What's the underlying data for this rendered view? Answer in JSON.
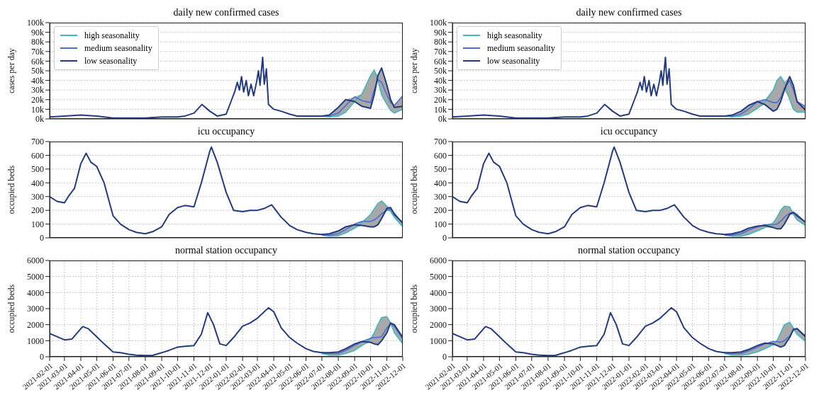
{
  "chart_data": [
    {
      "type": "line",
      "title": "daily new confirmed cases",
      "ylabel": "cases per day",
      "xlim": [
        "2021-02-01",
        "2022-12-01"
      ],
      "xticks": [
        "2021-02-01",
        "2021-03-01",
        "2021-04-01",
        "2021-05-01",
        "2021-06-01",
        "2021-07-01",
        "2021-08-01",
        "2021-09-01",
        "2021-10-01",
        "2021-11-01",
        "2021-12-01",
        "2022-01-01",
        "2022-02-01",
        "2022-03-01",
        "2022-04-01",
        "2022-05-01",
        "2022-06-01",
        "2022-07-01",
        "2022-08-01",
        "2022-09-01",
        "2022-10-01",
        "2022-11-01",
        "2022-12-01"
      ],
      "ylim": [
        0,
        100000
      ],
      "yticks": [
        {
          "value": 0,
          "label": "0k"
        },
        {
          "value": 10000,
          "label": "10k"
        },
        {
          "value": 20000,
          "label": "20k"
        },
        {
          "value": 30000,
          "label": "30k"
        },
        {
          "value": 40000,
          "label": "40k"
        },
        {
          "value": 50000,
          "label": "50k"
        },
        {
          "value": 60000,
          "label": "60k"
        },
        {
          "value": 70000,
          "label": "70k"
        },
        {
          "value": 80000,
          "label": "80k"
        },
        {
          "value": 90000,
          "label": "90k"
        },
        {
          "value": 100000,
          "label": "100k"
        }
      ],
      "grid": true,
      "legend": "top left",
      "tick_labels": "y",
      "series": [
        {
          "name": "high seasonality",
          "color": "#3fb8c4",
          "x": [
            "2022-07-01",
            "2022-07-15",
            "2022-08-01",
            "2022-08-15",
            "2022-09-01",
            "2022-09-15",
            "2022-10-01",
            "2022-10-08",
            "2022-10-15",
            "2022-10-22",
            "2022-11-01",
            "2022-11-08",
            "2022-11-15",
            "2022-12-01"
          ],
          "values": [
            3000,
            2000,
            3000,
            7000,
            18000,
            26000,
            45000,
            51000,
            40000,
            25000,
            15000,
            9000,
            6000,
            10000
          ]
        },
        {
          "name": "medium seasonality",
          "color": "#4a6fd0",
          "x": [
            "2022-07-01",
            "2022-07-15",
            "2022-08-01",
            "2022-08-15",
            "2022-09-01",
            "2022-09-15",
            "2022-10-01",
            "2022-10-08",
            "2022-10-15",
            "2022-10-22",
            "2022-11-01",
            "2022-11-08",
            "2022-11-15",
            "2022-12-01"
          ],
          "values": [
            3000,
            3000,
            6000,
            14000,
            23000,
            19000,
            17000,
            30000,
            41000,
            38000,
            25000,
            17000,
            14000,
            24000
          ],
          "lower": [
            3000,
            2000,
            3000,
            7000,
            18000,
            13000,
            11000,
            25000,
            40000,
            25000,
            15000,
            9000,
            6000,
            10000
          ],
          "upper": [
            3000,
            4000,
            12000,
            20000,
            23000,
            26000,
            45000,
            51000,
            45000,
            53000,
            35000,
            20000,
            14000,
            24000
          ]
        },
        {
          "name": "low seasonality",
          "color": "#233a80",
          "x": [
            "2021-02-01",
            "2021-03-01",
            "2021-04-01",
            "2021-05-01",
            "2021-06-01",
            "2021-07-01",
            "2021-08-01",
            "2021-09-01",
            "2021-10-01",
            "2021-10-15",
            "2021-11-01",
            "2021-11-16",
            "2021-12-01",
            "2021-12-15",
            "2022-01-01",
            "2022-01-10",
            "2022-01-17",
            "2022-01-22",
            "2022-01-26",
            "2022-01-30",
            "2022-02-03",
            "2022-02-08",
            "2022-02-12",
            "2022-02-17",
            "2022-02-22",
            "2022-02-28",
            "2022-03-03",
            "2022-03-06",
            "2022-03-11",
            "2022-03-14",
            "2022-03-18",
            "2022-03-22",
            "2022-04-01",
            "2022-04-15",
            "2022-05-01",
            "2022-05-15",
            "2022-06-01",
            "2022-06-15",
            "2022-07-01",
            "2022-07-15",
            "2022-08-01",
            "2022-08-15",
            "2022-09-01",
            "2022-09-15",
            "2022-10-01",
            "2022-10-08",
            "2022-10-15",
            "2022-10-22",
            "2022-11-01",
            "2022-11-08",
            "2022-11-15",
            "2022-12-01"
          ],
          "values": [
            2000,
            3000,
            4000,
            3000,
            1000,
            1000,
            1000,
            2000,
            2000,
            3000,
            6000,
            15000,
            8000,
            3000,
            5000,
            18000,
            28000,
            38000,
            30000,
            44000,
            28000,
            40000,
            24000,
            36000,
            24000,
            40000,
            50000,
            35000,
            64000,
            36000,
            52000,
            15000,
            10000,
            8000,
            5000,
            3000,
            3000,
            3000,
            3000,
            4000,
            12000,
            20000,
            18000,
            13000,
            11000,
            25000,
            45000,
            53000,
            35000,
            20000,
            12000,
            13000
          ]
        }
      ]
    },
    {
      "type": "line",
      "title": "daily new confirmed cases",
      "ylabel": "cases per day",
      "xlim": [
        "2021-02-01",
        "2022-12-01"
      ],
      "xticks": [
        "2021-02-01",
        "2021-03-01",
        "2021-04-01",
        "2021-05-01",
        "2021-06-01",
        "2021-07-01",
        "2021-08-01",
        "2021-09-01",
        "2021-10-01",
        "2021-11-01",
        "2021-12-01",
        "2022-01-01",
        "2022-02-01",
        "2022-03-01",
        "2022-04-01",
        "2022-05-01",
        "2022-06-01",
        "2022-07-01",
        "2022-08-01",
        "2022-09-01",
        "2022-10-01",
        "2022-11-01",
        "2022-12-01"
      ],
      "ylim": [
        0,
        100000
      ],
      "yticks": [
        {
          "value": 0,
          "label": "0k"
        },
        {
          "value": 10000,
          "label": "10k"
        },
        {
          "value": 20000,
          "label": "20k"
        },
        {
          "value": 30000,
          "label": "30k"
        },
        {
          "value": 40000,
          "label": "40k"
        },
        {
          "value": 50000,
          "label": "50k"
        },
        {
          "value": 60000,
          "label": "60k"
        },
        {
          "value": 70000,
          "label": "70k"
        },
        {
          "value": 80000,
          "label": "80k"
        },
        {
          "value": 90000,
          "label": "90k"
        },
        {
          "value": 100000,
          "label": "100k"
        }
      ],
      "grid": true,
      "legend": "top left",
      "tick_labels": "y",
      "series": [
        {
          "name": "high seasonality",
          "color": "#3fb8c4",
          "x": [
            "2022-07-01",
            "2022-07-15",
            "2022-08-01",
            "2022-08-15",
            "2022-09-01",
            "2022-09-15",
            "2022-10-01",
            "2022-10-08",
            "2022-10-15",
            "2022-10-22",
            "2022-11-01",
            "2022-11-08",
            "2022-11-15",
            "2022-12-01"
          ],
          "values": [
            3000,
            2000,
            3000,
            5000,
            11000,
            18000,
            30000,
            40000,
            44000,
            38000,
            20000,
            10000,
            7000,
            7000
          ]
        },
        {
          "name": "medium seasonality",
          "color": "#4a6fd0",
          "x": [
            "2022-07-01",
            "2022-07-15",
            "2022-08-01",
            "2022-08-15",
            "2022-09-01",
            "2022-09-15",
            "2022-10-01",
            "2022-10-08",
            "2022-10-15",
            "2022-10-22",
            "2022-11-01",
            "2022-11-08",
            "2022-11-15",
            "2022-12-01"
          ],
          "values": [
            3000,
            3000,
            5000,
            10000,
            18000,
            20000,
            17000,
            17000,
            22000,
            32000,
            40000,
            30000,
            18000,
            13000
          ],
          "lower": [
            3000,
            2000,
            3000,
            5000,
            11000,
            15000,
            8000,
            10000,
            18000,
            30000,
            20000,
            10000,
            7000,
            7000
          ],
          "upper": [
            3000,
            4000,
            8000,
            14000,
            18000,
            20000,
            30000,
            40000,
            44000,
            38000,
            44000,
            35000,
            18000,
            13000
          ]
        },
        {
          "name": "low seasonality",
          "color": "#233a80",
          "x": [
            "2021-02-01",
            "2021-03-01",
            "2021-04-01",
            "2021-05-01",
            "2021-06-01",
            "2021-07-01",
            "2021-08-01",
            "2021-09-01",
            "2021-10-01",
            "2021-10-15",
            "2021-11-01",
            "2021-11-16",
            "2021-12-01",
            "2021-12-15",
            "2022-01-01",
            "2022-01-10",
            "2022-01-17",
            "2022-01-22",
            "2022-01-26",
            "2022-01-30",
            "2022-02-03",
            "2022-02-08",
            "2022-02-12",
            "2022-02-17",
            "2022-02-22",
            "2022-02-28",
            "2022-03-03",
            "2022-03-06",
            "2022-03-11",
            "2022-03-14",
            "2022-03-18",
            "2022-03-22",
            "2022-04-01",
            "2022-04-15",
            "2022-05-01",
            "2022-05-15",
            "2022-06-01",
            "2022-06-15",
            "2022-07-01",
            "2022-07-15",
            "2022-08-01",
            "2022-08-15",
            "2022-09-01",
            "2022-09-15",
            "2022-10-01",
            "2022-10-08",
            "2022-10-15",
            "2022-10-22",
            "2022-11-01",
            "2022-11-08",
            "2022-11-15",
            "2022-12-01"
          ],
          "values": [
            2000,
            3000,
            4000,
            3000,
            1000,
            1000,
            1000,
            2000,
            2000,
            3000,
            6000,
            15000,
            8000,
            3000,
            5000,
            18000,
            28000,
            38000,
            30000,
            44000,
            28000,
            40000,
            24000,
            36000,
            24000,
            40000,
            50000,
            35000,
            64000,
            36000,
            52000,
            15000,
            10000,
            8000,
            5000,
            3000,
            3000,
            3000,
            3000,
            4000,
            8000,
            14000,
            18000,
            15000,
            8000,
            10000,
            18000,
            30000,
            44000,
            35000,
            18000,
            9000
          ]
        }
      ]
    },
    {
      "type": "line",
      "title": "icu occupancy",
      "ylabel": "occupied beds",
      "xlim": [
        "2021-02-01",
        "2022-12-01"
      ],
      "xticks": [
        "2021-02-01",
        "2021-03-01",
        "2021-04-01",
        "2021-05-01",
        "2021-06-01",
        "2021-07-01",
        "2021-08-01",
        "2021-09-01",
        "2021-10-01",
        "2021-11-01",
        "2021-12-01",
        "2022-01-01",
        "2022-02-01",
        "2022-03-01",
        "2022-04-01",
        "2022-05-01",
        "2022-06-01",
        "2022-07-01",
        "2022-08-01",
        "2022-09-01",
        "2022-10-01",
        "2022-11-01",
        "2022-12-01"
      ],
      "ylim": [
        0,
        700
      ],
      "yticks": [
        0,
        100,
        200,
        300,
        400,
        500,
        600,
        700
      ],
      "grid": true,
      "tick_labels": "y",
      "series": [
        {
          "color": "#3fb8c4",
          "x": [
            "2022-07-01",
            "2022-07-15",
            "2022-08-01",
            "2022-08-15",
            "2022-09-01",
            "2022-09-15",
            "2022-10-01",
            "2022-10-08",
            "2022-10-15",
            "2022-10-22",
            "2022-11-01",
            "2022-11-08",
            "2022-11-15",
            "2022-12-01"
          ],
          "values": [
            20,
            12,
            15,
            35,
            70,
            110,
            170,
            210,
            250,
            268,
            230,
            190,
            150,
            80
          ]
        },
        {
          "color": "#4a6fd0",
          "x": [
            "2022-07-01",
            "2022-07-15",
            "2022-08-01",
            "2022-08-15",
            "2022-09-01",
            "2022-09-15",
            "2022-10-01",
            "2022-10-08",
            "2022-10-15",
            "2022-10-22",
            "2022-11-01",
            "2022-11-08",
            "2022-11-15",
            "2022-12-01"
          ],
          "values": [
            20,
            20,
            30,
            60,
            100,
            120,
            120,
            130,
            150,
            175,
            200,
            210,
            180,
            100
          ],
          "lower": [
            20,
            12,
            15,
            35,
            70,
            90,
            80,
            80,
            95,
            140,
            200,
            190,
            150,
            80
          ],
          "upper": [
            25,
            30,
            50,
            80,
            100,
            120,
            170,
            210,
            250,
            268,
            230,
            220,
            180,
            110
          ]
        },
        {
          "color": "#233a80",
          "x": [
            "2021-02-01",
            "2021-02-15",
            "2021-03-01",
            "2021-03-10",
            "2021-03-20",
            "2021-04-01",
            "2021-04-11",
            "2021-04-20",
            "2021-05-01",
            "2021-05-15",
            "2021-06-01",
            "2021-06-15",
            "2021-07-01",
            "2021-07-15",
            "2021-08-01",
            "2021-08-15",
            "2021-09-01",
            "2021-09-15",
            "2021-10-01",
            "2021-10-15",
            "2021-11-01",
            "2021-11-15",
            "2021-12-01",
            "2021-12-04",
            "2021-12-15",
            "2022-01-01",
            "2022-01-15",
            "2022-02-01",
            "2022-02-15",
            "2022-03-01",
            "2022-03-15",
            "2022-03-28",
            "2022-04-15",
            "2022-05-01",
            "2022-05-15",
            "2022-06-01",
            "2022-06-15",
            "2022-07-01",
            "2022-07-15",
            "2022-08-01",
            "2022-08-15",
            "2022-09-01",
            "2022-09-15",
            "2022-10-01",
            "2022-10-08",
            "2022-10-15",
            "2022-10-22",
            "2022-11-01",
            "2022-11-08",
            "2022-11-15",
            "2022-12-01"
          ],
          "values": [
            300,
            265,
            255,
            310,
            360,
            540,
            615,
            550,
            520,
            400,
            160,
            100,
            60,
            40,
            30,
            45,
            80,
            170,
            220,
            235,
            225,
            400,
            630,
            660,
            550,
            330,
            200,
            190,
            200,
            200,
            215,
            240,
            150,
            90,
            60,
            40,
            30,
            25,
            30,
            50,
            80,
            95,
            90,
            80,
            80,
            95,
            140,
            215,
            220,
            170,
            110
          ]
        }
      ]
    },
    {
      "type": "line",
      "title": "icu occupancy",
      "ylabel": "occupied beds",
      "xlim": [
        "2021-02-01",
        "2022-12-01"
      ],
      "xticks": [
        "2021-02-01",
        "2021-03-01",
        "2021-04-01",
        "2021-05-01",
        "2021-06-01",
        "2021-07-01",
        "2021-08-01",
        "2021-09-01",
        "2021-10-01",
        "2021-11-01",
        "2021-12-01",
        "2022-01-01",
        "2022-02-01",
        "2022-03-01",
        "2022-04-01",
        "2022-05-01",
        "2022-06-01",
        "2022-07-01",
        "2022-08-01",
        "2022-09-01",
        "2022-10-01",
        "2022-11-01",
        "2022-12-01"
      ],
      "ylim": [
        0,
        700
      ],
      "yticks": [
        0,
        100,
        200,
        300,
        400,
        500,
        600,
        700
      ],
      "grid": true,
      "tick_labels": "y",
      "series": [
        {
          "color": "#3fb8c4",
          "x": [
            "2022-07-01",
            "2022-07-15",
            "2022-08-01",
            "2022-08-15",
            "2022-09-01",
            "2022-09-15",
            "2022-10-01",
            "2022-10-08",
            "2022-10-15",
            "2022-10-22",
            "2022-11-01",
            "2022-11-08",
            "2022-11-15",
            "2022-12-01"
          ],
          "values": [
            20,
            12,
            12,
            25,
            50,
            75,
            110,
            150,
            200,
            230,
            225,
            170,
            130,
            90
          ]
        },
        {
          "color": "#4a6fd0",
          "x": [
            "2022-07-01",
            "2022-07-15",
            "2022-08-01",
            "2022-08-15",
            "2022-09-01",
            "2022-09-15",
            "2022-10-01",
            "2022-10-08",
            "2022-10-15",
            "2022-10-22",
            "2022-11-01",
            "2022-11-08",
            "2022-11-15",
            "2022-12-01"
          ],
          "values": [
            20,
            20,
            30,
            55,
            80,
            95,
            95,
            100,
            120,
            150,
            180,
            185,
            170,
            110
          ],
          "lower": [
            20,
            12,
            12,
            25,
            50,
            75,
            75,
            65,
            65,
            100,
            170,
            170,
            130,
            90
          ],
          "upper": [
            25,
            30,
            45,
            70,
            85,
            95,
            110,
            150,
            200,
            230,
            225,
            185,
            170,
            115
          ]
        },
        {
          "color": "#233a80",
          "x": [
            "2021-02-01",
            "2021-02-15",
            "2021-03-01",
            "2021-03-10",
            "2021-03-20",
            "2021-04-01",
            "2021-04-11",
            "2021-04-20",
            "2021-05-01",
            "2021-05-15",
            "2021-06-01",
            "2021-06-15",
            "2021-07-01",
            "2021-07-15",
            "2021-08-01",
            "2021-08-15",
            "2021-09-01",
            "2021-09-15",
            "2021-10-01",
            "2021-10-15",
            "2021-11-01",
            "2021-11-15",
            "2021-12-01",
            "2021-12-04",
            "2021-12-15",
            "2022-01-01",
            "2022-01-15",
            "2022-02-01",
            "2022-02-15",
            "2022-03-01",
            "2022-03-15",
            "2022-03-28",
            "2022-04-15",
            "2022-05-01",
            "2022-05-15",
            "2022-06-01",
            "2022-06-15",
            "2022-07-01",
            "2022-07-15",
            "2022-08-01",
            "2022-08-15",
            "2022-09-01",
            "2022-09-15",
            "2022-10-01",
            "2022-10-08",
            "2022-10-15",
            "2022-10-22",
            "2022-11-01",
            "2022-11-08",
            "2022-11-15",
            "2022-12-01"
          ],
          "values": [
            300,
            265,
            255,
            310,
            360,
            540,
            615,
            550,
            520,
            400,
            160,
            100,
            60,
            40,
            30,
            45,
            80,
            170,
            220,
            235,
            225,
            400,
            630,
            660,
            550,
            330,
            200,
            190,
            200,
            200,
            215,
            240,
            150,
            90,
            60,
            40,
            30,
            25,
            30,
            45,
            70,
            85,
            90,
            75,
            65,
            65,
            100,
            170,
            185,
            160,
            115
          ]
        }
      ]
    },
    {
      "type": "line",
      "title": "normal station occupancy",
      "ylabel": "occupied beds",
      "xlim": [
        "2021-02-01",
        "2022-12-01"
      ],
      "xticks": [
        "2021-02-01",
        "2021-03-01",
        "2021-04-01",
        "2021-05-01",
        "2021-06-01",
        "2021-07-01",
        "2021-08-01",
        "2021-09-01",
        "2021-10-01",
        "2021-11-01",
        "2021-12-01",
        "2022-01-01",
        "2022-02-01",
        "2022-03-01",
        "2022-04-01",
        "2022-05-01",
        "2022-06-01",
        "2022-07-01",
        "2022-08-01",
        "2022-09-01",
        "2022-10-01",
        "2022-11-01",
        "2022-12-01"
      ],
      "ylim": [
        0,
        6000
      ],
      "yticks": [
        0,
        1000,
        2000,
        3000,
        4000,
        5000,
        6000
      ],
      "grid": true,
      "series": [
        {
          "color": "#3fb8c4",
          "x": [
            "2022-07-01",
            "2022-07-15",
            "2022-08-01",
            "2022-08-15",
            "2022-09-01",
            "2022-09-15",
            "2022-10-01",
            "2022-10-08",
            "2022-10-15",
            "2022-10-22",
            "2022-11-01",
            "2022-11-08",
            "2022-11-15",
            "2022-12-01"
          ],
          "values": [
            200,
            100,
            100,
            200,
            400,
            700,
            1100,
            1500,
            2000,
            2450,
            2500,
            2100,
            1500,
            800
          ]
        },
        {
          "color": "#4a6fd0",
          "x": [
            "2022-07-01",
            "2022-07-15",
            "2022-08-01",
            "2022-08-15",
            "2022-09-01",
            "2022-09-15",
            "2022-10-01",
            "2022-10-08",
            "2022-10-15",
            "2022-10-22",
            "2022-11-01",
            "2022-11-08",
            "2022-11-15",
            "2022-12-01"
          ],
          "values": [
            250,
            200,
            200,
            400,
            700,
            950,
            1150,
            1200,
            1200,
            1250,
            1800,
            2050,
            1900,
            1100
          ],
          "lower": [
            200,
            100,
            100,
            200,
            400,
            700,
            900,
            800,
            750,
            1000,
            1500,
            2050,
            1500,
            800
          ],
          "upper": [
            250,
            250,
            300,
            500,
            800,
            950,
            1150,
            1500,
            2000,
            2450,
            2500,
            2100,
            2000,
            1200
          ]
        },
        {
          "color": "#233a80",
          "x": [
            "2021-02-01",
            "2021-02-15",
            "2021-03-01",
            "2021-03-15",
            "2021-04-01",
            "2021-04-05",
            "2021-04-15",
            "2021-05-01",
            "2021-05-15",
            "2021-06-01",
            "2021-06-15",
            "2021-07-01",
            "2021-07-15",
            "2021-08-01",
            "2021-08-15",
            "2021-09-01",
            "2021-09-15",
            "2021-10-01",
            "2021-10-15",
            "2021-11-01",
            "2021-11-15",
            "2021-11-27",
            "2021-12-08",
            "2021-12-20",
            "2022-01-01",
            "2022-01-15",
            "2022-02-01",
            "2022-02-15",
            "2022-03-01",
            "2022-03-22",
            "2022-04-01",
            "2022-04-15",
            "2022-05-01",
            "2022-05-15",
            "2022-06-01",
            "2022-06-15",
            "2022-07-01",
            "2022-07-15",
            "2022-08-01",
            "2022-08-15",
            "2022-09-01",
            "2022-09-15",
            "2022-10-01",
            "2022-10-08",
            "2022-10-15",
            "2022-10-22",
            "2022-11-01",
            "2022-11-08",
            "2022-11-15",
            "2022-12-01"
          ],
          "values": [
            1450,
            1250,
            1050,
            1100,
            1750,
            1880,
            1750,
            1250,
            800,
            300,
            250,
            150,
            100,
            80,
            90,
            250,
            400,
            600,
            650,
            700,
            1400,
            2750,
            2000,
            800,
            700,
            1200,
            1900,
            2100,
            2400,
            3050,
            2800,
            1800,
            1200,
            850,
            500,
            330,
            250,
            250,
            300,
            500,
            800,
            950,
            900,
            800,
            750,
            1000,
            1500,
            2100,
            2000,
            1200
          ]
        }
      ]
    },
    {
      "type": "line",
      "title": "normal station occupancy",
      "ylabel": "occupied beds",
      "xlim": [
        "2021-02-01",
        "2022-12-01"
      ],
      "xticks": [
        "2021-02-01",
        "2021-03-01",
        "2021-04-01",
        "2021-05-01",
        "2021-06-01",
        "2021-07-01",
        "2021-08-01",
        "2021-09-01",
        "2021-10-01",
        "2021-11-01",
        "2021-12-01",
        "2022-01-01",
        "2022-02-01",
        "2022-03-01",
        "2022-04-01",
        "2022-05-01",
        "2022-06-01",
        "2022-07-01",
        "2022-08-01",
        "2022-09-01",
        "2022-10-01",
        "2022-11-01",
        "2022-12-01"
      ],
      "ylim": [
        0,
        6000
      ],
      "yticks": [
        0,
        1000,
        2000,
        3000,
        4000,
        5000,
        6000
      ],
      "grid": true,
      "series": [
        {
          "color": "#3fb8c4",
          "x": [
            "2022-07-01",
            "2022-07-15",
            "2022-08-01",
            "2022-08-15",
            "2022-09-01",
            "2022-09-15",
            "2022-10-01",
            "2022-10-08",
            "2022-10-15",
            "2022-10-22",
            "2022-11-01",
            "2022-11-08",
            "2022-11-15",
            "2022-12-01"
          ],
          "values": [
            200,
            100,
            100,
            150,
            300,
            500,
            750,
            1000,
            1500,
            2000,
            2150,
            1800,
            1400,
            950
          ]
        },
        {
          "color": "#4a6fd0",
          "x": [
            "2022-07-01",
            "2022-07-15",
            "2022-08-01",
            "2022-08-15",
            "2022-09-01",
            "2022-09-15",
            "2022-10-01",
            "2022-10-08",
            "2022-10-15",
            "2022-10-22",
            "2022-11-01",
            "2022-11-08",
            "2022-11-15",
            "2022-12-01"
          ],
          "values": [
            250,
            200,
            200,
            350,
            600,
            800,
            950,
            950,
            900,
            1000,
            1300,
            1650,
            1750,
            1300
          ],
          "lower": [
            200,
            100,
            100,
            150,
            300,
            500,
            750,
            700,
            600,
            700,
            1200,
            1650,
            1400,
            950
          ],
          "upper": [
            250,
            250,
            300,
            450,
            700,
            850,
            950,
            1000,
            1500,
            2000,
            2150,
            1800,
            1750,
            1300
          ]
        },
        {
          "color": "#233a80",
          "x": [
            "2021-02-01",
            "2021-02-15",
            "2021-03-01",
            "2021-03-15",
            "2021-04-01",
            "2021-04-05",
            "2021-04-15",
            "2021-05-01",
            "2021-05-15",
            "2021-06-01",
            "2021-06-15",
            "2021-07-01",
            "2021-07-15",
            "2021-08-01",
            "2021-08-15",
            "2021-09-01",
            "2021-09-15",
            "2021-10-01",
            "2021-10-15",
            "2021-11-01",
            "2021-11-15",
            "2021-11-27",
            "2021-12-08",
            "2021-12-20",
            "2022-01-01",
            "2022-01-15",
            "2022-02-01",
            "2022-02-15",
            "2022-03-01",
            "2022-03-22",
            "2022-04-01",
            "2022-04-15",
            "2022-05-01",
            "2022-05-15",
            "2022-06-01",
            "2022-06-15",
            "2022-07-01",
            "2022-07-15",
            "2022-08-01",
            "2022-08-15",
            "2022-09-01",
            "2022-09-15",
            "2022-10-01",
            "2022-10-08",
            "2022-10-15",
            "2022-10-22",
            "2022-11-01",
            "2022-11-08",
            "2022-11-15",
            "2022-12-01"
          ],
          "values": [
            1450,
            1250,
            1050,
            1100,
            1750,
            1880,
            1750,
            1250,
            800,
            300,
            250,
            150,
            100,
            80,
            90,
            250,
            400,
            600,
            650,
            700,
            1400,
            2750,
            2000,
            800,
            700,
            1200,
            1900,
            2100,
            2400,
            3050,
            2800,
            1800,
            1200,
            850,
            500,
            330,
            250,
            250,
            300,
            450,
            700,
            850,
            800,
            700,
            600,
            700,
            1200,
            1700,
            1750,
            1250
          ]
        }
      ]
    }
  ]
}
